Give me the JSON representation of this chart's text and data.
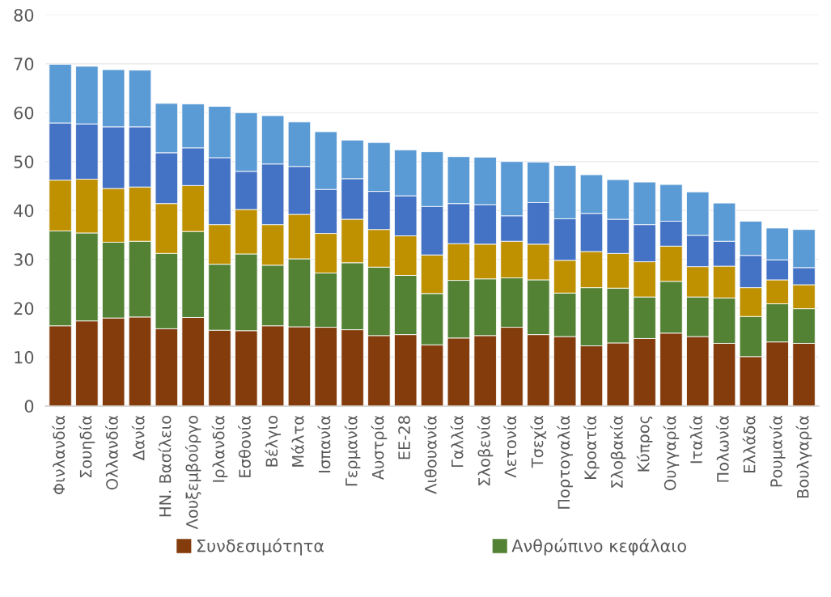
{
  "chart_data": {
    "type": "bar",
    "stacked": true,
    "categories": [
      "Φινλανδία",
      "Σουηδία",
      "Ολλανδία",
      "Δανία",
      "ΗΝ. Βασίλειο",
      "Λουξεμβούργο",
      "Ιρλανδία",
      "Εσθονία",
      "Βέλγιο",
      "Μάλτα",
      "Ισπανία",
      "Γερμανία",
      "Αυστρία",
      "ΕΕ-28",
      "Λιθουανία",
      "Γαλλία",
      "Σλοβενία",
      "Λετονία",
      "Τσεχία",
      "Πορτογαλία",
      "Κροατία",
      "Σλοβακία",
      "Κύπρος",
      "Ουγγαρία",
      "Ιταλία",
      "Πολωνία",
      "Ελλάδα",
      "Ρουμανία",
      "Βουλγαρία"
    ],
    "series": [
      {
        "name": "Συνδεσιμότητα",
        "color": "#843c0c",
        "values": [
          16.4,
          17.4,
          18.0,
          18.2,
          15.8,
          18.1,
          15.5,
          15.4,
          16.4,
          16.2,
          16.1,
          15.6,
          14.4,
          14.6,
          12.5,
          13.9,
          14.4,
          16.1,
          14.6,
          14.2,
          12.3,
          12.9,
          13.8,
          14.9,
          14.2,
          12.8,
          10.1,
          13.1,
          12.8
        ]
      },
      {
        "name": "Ανθρώπινο κεφάλαιο",
        "color": "#548235",
        "values": [
          19.4,
          18.0,
          15.5,
          15.5,
          15.4,
          17.6,
          13.5,
          15.7,
          12.4,
          13.9,
          11.1,
          13.7,
          14.0,
          12.1,
          10.5,
          11.8,
          11.6,
          10.1,
          11.2,
          8.9,
          11.9,
          11.2,
          8.5,
          10.6,
          8.1,
          9.3,
          8.2,
          7.8,
          7.1
        ]
      },
      {
        "color": "#bf9000",
        "values": [
          10.4,
          11.0,
          11.0,
          11.1,
          10.2,
          9.4,
          8.1,
          9.1,
          8.3,
          9.1,
          8.1,
          8.9,
          7.7,
          8.1,
          7.9,
          7.5,
          7.1,
          7.5,
          7.3,
          6.7,
          7.4,
          7.1,
          7.2,
          7.2,
          6.2,
          6.5,
          5.9,
          4.9,
          4.9
        ]
      },
      {
        "color": "#4472c4",
        "values": [
          11.7,
          11.3,
          12.6,
          12.3,
          10.4,
          7.7,
          13.7,
          7.8,
          12.4,
          9.8,
          9.0,
          8.3,
          7.8,
          8.2,
          9.9,
          8.2,
          8.1,
          5.2,
          8.5,
          8.5,
          7.8,
          7.0,
          7.6,
          5.1,
          6.4,
          5.1,
          6.6,
          4.1,
          3.5
        ]
      },
      {
        "color": "#5b9bd5",
        "values": [
          12.0,
          11.8,
          11.7,
          11.6,
          10.1,
          9.0,
          10.5,
          12.0,
          9.9,
          9.1,
          11.8,
          7.9,
          10.0,
          9.4,
          11.2,
          9.6,
          9.7,
          11.1,
          8.3,
          10.9,
          7.9,
          8.1,
          8.7,
          7.5,
          8.9,
          7.8,
          7.0,
          6.5,
          7.8
        ]
      }
    ],
    "ylim": [
      0,
      80
    ],
    "yticks": [
      0,
      10,
      20,
      30,
      40,
      50,
      60,
      70,
      80
    ],
    "grid": "y",
    "legend": "bottom"
  }
}
